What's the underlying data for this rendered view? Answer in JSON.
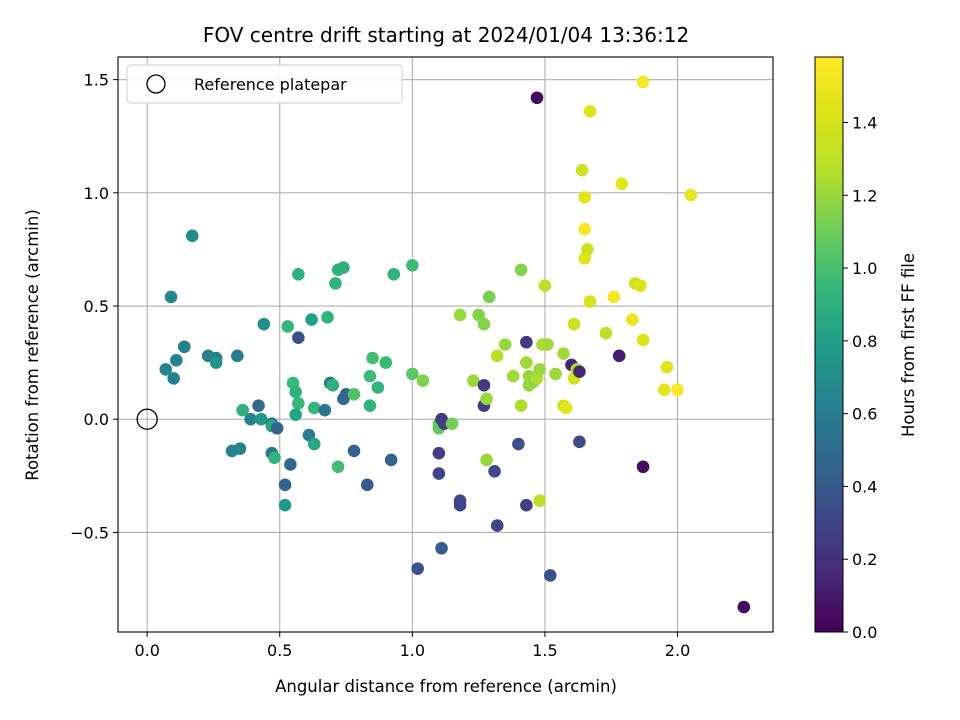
{
  "chart_data": {
    "type": "scatter",
    "title": "FOV centre drift starting at 2024/01/04 13:36:12",
    "xlabel": "Angular distance from reference (arcmin)",
    "ylabel": "Rotation from reference (arcmin)",
    "xlim": [
      -0.11,
      2.36
    ],
    "ylim": [
      -0.94,
      1.6
    ],
    "xticks": [
      0.0,
      0.5,
      1.0,
      1.5,
      2.0
    ],
    "xtick_labels": [
      "0.0",
      "0.5",
      "1.0",
      "1.5",
      "2.0"
    ],
    "yticks": [
      -0.5,
      0.0,
      0.5,
      1.0,
      1.5
    ],
    "ytick_labels": [
      "−0.5",
      "0.0",
      "0.5",
      "1.0",
      "1.5"
    ],
    "grid": true,
    "legend": {
      "position": "top-left",
      "entries": [
        {
          "label": "Reference platepar",
          "marker": "open-circle",
          "x": 0.0,
          "y": 0.0
        }
      ]
    },
    "colorbar": {
      "label": "Hours from first FF file",
      "colormap": "viridis",
      "range": [
        0.0,
        1.58
      ],
      "ticks": [
        0.0,
        0.2,
        0.4,
        0.6,
        0.8,
        1.0,
        1.2,
        1.4
      ],
      "tick_labels": [
        "0.0",
        "0.2",
        "0.4",
        "0.6",
        "0.8",
        "1.0",
        "1.2",
        "1.4"
      ]
    },
    "points": [
      {
        "x": 0.17,
        "y": 0.81,
        "c": 0.68
      },
      {
        "x": 0.09,
        "y": 0.54,
        "c": 0.66
      },
      {
        "x": 0.14,
        "y": 0.32,
        "c": 0.62
      },
      {
        "x": 0.07,
        "y": 0.22,
        "c": 0.63
      },
      {
        "x": 0.11,
        "y": 0.26,
        "c": 0.63
      },
      {
        "x": 0.1,
        "y": 0.18,
        "c": 0.64
      },
      {
        "x": 0.23,
        "y": 0.28,
        "c": 0.6
      },
      {
        "x": 0.26,
        "y": 0.27,
        "c": 0.61
      },
      {
        "x": 0.26,
        "y": 0.25,
        "c": 0.73
      },
      {
        "x": 0.34,
        "y": 0.28,
        "c": 0.6
      },
      {
        "x": 0.44,
        "y": 0.42,
        "c": 0.7
      },
      {
        "x": 0.32,
        "y": -0.14,
        "c": 0.66
      },
      {
        "x": 0.35,
        "y": -0.13,
        "c": 0.63
      },
      {
        "x": 0.36,
        "y": 0.04,
        "c": 0.9
      },
      {
        "x": 0.39,
        "y": 0.0,
        "c": 0.63
      },
      {
        "x": 0.42,
        "y": 0.06,
        "c": 0.49
      },
      {
        "x": 0.43,
        "y": 0.0,
        "c": 0.76
      },
      {
        "x": 0.47,
        "y": -0.02,
        "c": 0.52
      },
      {
        "x": 0.47,
        "y": -0.03,
        "c": 0.86
      },
      {
        "x": 0.49,
        "y": -0.04,
        "c": 0.46
      },
      {
        "x": 0.47,
        "y": -0.15,
        "c": 0.58
      },
      {
        "x": 0.48,
        "y": -0.17,
        "c": 0.91
      },
      {
        "x": 0.53,
        "y": 0.41,
        "c": 0.93
      },
      {
        "x": 0.55,
        "y": 0.16,
        "c": 0.96
      },
      {
        "x": 0.56,
        "y": 0.12,
        "c": 0.92
      },
      {
        "x": 0.57,
        "y": 0.07,
        "c": 0.95
      },
      {
        "x": 0.56,
        "y": 0.02,
        "c": 0.82
      },
      {
        "x": 0.57,
        "y": 0.36,
        "c": 0.36
      },
      {
        "x": 0.57,
        "y": 0.64,
        "c": 0.9
      },
      {
        "x": 0.54,
        "y": -0.2,
        "c": 0.48
      },
      {
        "x": 0.52,
        "y": -0.29,
        "c": 0.46
      },
      {
        "x": 0.52,
        "y": -0.38,
        "c": 0.78
      },
      {
        "x": 0.61,
        "y": -0.07,
        "c": 0.59
      },
      {
        "x": 0.63,
        "y": -0.11,
        "c": 0.85
      },
      {
        "x": 0.63,
        "y": 0.05,
        "c": 0.95
      },
      {
        "x": 0.62,
        "y": 0.44,
        "c": 0.8
      },
      {
        "x": 0.67,
        "y": 0.04,
        "c": 0.55
      },
      {
        "x": 0.68,
        "y": 0.45,
        "c": 0.92
      },
      {
        "x": 0.69,
        "y": 0.16,
        "c": 0.57
      },
      {
        "x": 0.7,
        "y": 0.15,
        "c": 0.9
      },
      {
        "x": 0.71,
        "y": 0.6,
        "c": 0.92
      },
      {
        "x": 0.72,
        "y": 0.66,
        "c": 0.92
      },
      {
        "x": 0.74,
        "y": 0.67,
        "c": 0.9
      },
      {
        "x": 0.72,
        "y": -0.21,
        "c": 0.98
      },
      {
        "x": 0.74,
        "y": 0.09,
        "c": 0.48
      },
      {
        "x": 0.75,
        "y": 0.11,
        "c": 0.46
      },
      {
        "x": 0.78,
        "y": 0.11,
        "c": 1.02
      },
      {
        "x": 0.78,
        "y": -0.14,
        "c": 0.45
      },
      {
        "x": 0.84,
        "y": 0.06,
        "c": 0.92
      },
      {
        "x": 0.84,
        "y": 0.19,
        "c": 0.97
      },
      {
        "x": 0.85,
        "y": 0.27,
        "c": 0.99
      },
      {
        "x": 0.87,
        "y": 0.14,
        "c": 0.93
      },
      {
        "x": 0.83,
        "y": -0.29,
        "c": 0.41
      },
      {
        "x": 0.9,
        "y": 0.25,
        "c": 0.96
      },
      {
        "x": 0.92,
        "y": -0.18,
        "c": 0.44
      },
      {
        "x": 0.93,
        "y": 0.64,
        "c": 0.93
      },
      {
        "x": 1.0,
        "y": 0.68,
        "c": 0.97
      },
      {
        "x": 1.0,
        "y": 0.2,
        "c": 1.05
      },
      {
        "x": 1.04,
        "y": 0.17,
        "c": 1.14
      },
      {
        "x": 1.02,
        "y": -0.66,
        "c": 0.36
      },
      {
        "x": 1.1,
        "y": -0.02,
        "c": 1.07
      },
      {
        "x": 1.1,
        "y": -0.04,
        "c": 1.07
      },
      {
        "x": 1.11,
        "y": 0.0,
        "c": 0.25
      },
      {
        "x": 1.12,
        "y": -0.02,
        "c": 0.27
      },
      {
        "x": 1.15,
        "y": -0.02,
        "c": 1.12
      },
      {
        "x": 1.1,
        "y": -0.15,
        "c": 0.27
      },
      {
        "x": 1.1,
        "y": -0.24,
        "c": 0.3
      },
      {
        "x": 1.11,
        "y": -0.57,
        "c": 0.41
      },
      {
        "x": 1.18,
        "y": 0.46,
        "c": 1.2
      },
      {
        "x": 1.18,
        "y": -0.36,
        "c": 0.32
      },
      {
        "x": 1.18,
        "y": -0.38,
        "c": 0.3
      },
      {
        "x": 1.23,
        "y": 0.17,
        "c": 1.2
      },
      {
        "x": 1.25,
        "y": 0.46,
        "c": 1.15
      },
      {
        "x": 1.27,
        "y": 0.42,
        "c": 1.15
      },
      {
        "x": 1.27,
        "y": 0.06,
        "c": 0.26
      },
      {
        "x": 1.27,
        "y": 0.15,
        "c": 0.25
      },
      {
        "x": 1.28,
        "y": 0.09,
        "c": 1.2
      },
      {
        "x": 1.28,
        "y": -0.18,
        "c": 1.2
      },
      {
        "x": 1.29,
        "y": 0.54,
        "c": 1.12
      },
      {
        "x": 1.31,
        "y": -0.23,
        "c": 0.31
      },
      {
        "x": 1.32,
        "y": -0.47,
        "c": 0.31
      },
      {
        "x": 1.32,
        "y": 0.28,
        "c": 1.28
      },
      {
        "x": 1.35,
        "y": 0.33,
        "c": 1.2
      },
      {
        "x": 1.38,
        "y": 0.19,
        "c": 1.22
      },
      {
        "x": 1.4,
        "y": -0.11,
        "c": 0.36
      },
      {
        "x": 1.41,
        "y": 0.66,
        "c": 1.15
      },
      {
        "x": 1.41,
        "y": 0.06,
        "c": 1.25
      },
      {
        "x": 1.43,
        "y": 0.34,
        "c": 0.25
      },
      {
        "x": 1.43,
        "y": 0.25,
        "c": 1.22
      },
      {
        "x": 1.44,
        "y": 0.19,
        "c": 1.2
      },
      {
        "x": 1.44,
        "y": 0.15,
        "c": 1.18
      },
      {
        "x": 1.45,
        "y": 0.16,
        "c": 1.2
      },
      {
        "x": 1.46,
        "y": 0.17,
        "c": 1.17
      },
      {
        "x": 1.47,
        "y": 0.18,
        "c": 1.25
      },
      {
        "x": 1.43,
        "y": -0.38,
        "c": 0.28
      },
      {
        "x": 1.47,
        "y": 1.42,
        "c": 0.05
      },
      {
        "x": 1.48,
        "y": 0.22,
        "c": 1.2
      },
      {
        "x": 1.49,
        "y": 0.33,
        "c": 1.25
      },
      {
        "x": 1.48,
        "y": -0.36,
        "c": 1.3
      },
      {
        "x": 1.51,
        "y": 0.33,
        "c": 1.22
      },
      {
        "x": 1.5,
        "y": 0.59,
        "c": 1.3
      },
      {
        "x": 1.52,
        "y": -0.69,
        "c": 0.35
      },
      {
        "x": 1.54,
        "y": 0.2,
        "c": 1.2
      },
      {
        "x": 1.57,
        "y": 0.29,
        "c": 1.22
      },
      {
        "x": 1.57,
        "y": 0.06,
        "c": 1.35
      },
      {
        "x": 1.58,
        "y": 0.05,
        "c": 1.45
      },
      {
        "x": 1.61,
        "y": 0.42,
        "c": 1.35
      },
      {
        "x": 1.6,
        "y": 0.24,
        "c": 0.15
      },
      {
        "x": 1.61,
        "y": 0.18,
        "c": 1.38
      },
      {
        "x": 1.62,
        "y": 0.22,
        "c": 1.25
      },
      {
        "x": 1.63,
        "y": 0.21,
        "c": 0.14
      },
      {
        "x": 1.63,
        "y": -0.1,
        "c": 0.33
      },
      {
        "x": 1.64,
        "y": 1.1,
        "c": 1.35
      },
      {
        "x": 1.65,
        "y": 0.98,
        "c": 1.45
      },
      {
        "x": 1.65,
        "y": 0.84,
        "c": 1.55
      },
      {
        "x": 1.65,
        "y": 0.71,
        "c": 1.45
      },
      {
        "x": 1.66,
        "y": 0.75,
        "c": 1.35
      },
      {
        "x": 1.67,
        "y": 1.36,
        "c": 1.43
      },
      {
        "x": 1.67,
        "y": 0.52,
        "c": 1.4
      },
      {
        "x": 1.73,
        "y": 0.38,
        "c": 1.3
      },
      {
        "x": 1.76,
        "y": 0.54,
        "c": 1.55
      },
      {
        "x": 1.78,
        "y": 0.28,
        "c": 0.1
      },
      {
        "x": 1.79,
        "y": 1.04,
        "c": 1.45
      },
      {
        "x": 1.83,
        "y": 0.44,
        "c": 1.5
      },
      {
        "x": 1.84,
        "y": 0.6,
        "c": 1.35
      },
      {
        "x": 1.86,
        "y": 0.59,
        "c": 1.43
      },
      {
        "x": 1.87,
        "y": 1.49,
        "c": 1.55
      },
      {
        "x": 1.87,
        "y": 0.35,
        "c": 1.42
      },
      {
        "x": 1.87,
        "y": -0.21,
        "c": 0.05
      },
      {
        "x": 1.95,
        "y": 0.13,
        "c": 1.45
      },
      {
        "x": 1.96,
        "y": 0.23,
        "c": 1.42
      },
      {
        "x": 2.0,
        "y": 0.13,
        "c": 1.55
      },
      {
        "x": 2.05,
        "y": 0.99,
        "c": 1.48
      },
      {
        "x": 2.25,
        "y": -0.83,
        "c": 0.05
      }
    ]
  }
}
